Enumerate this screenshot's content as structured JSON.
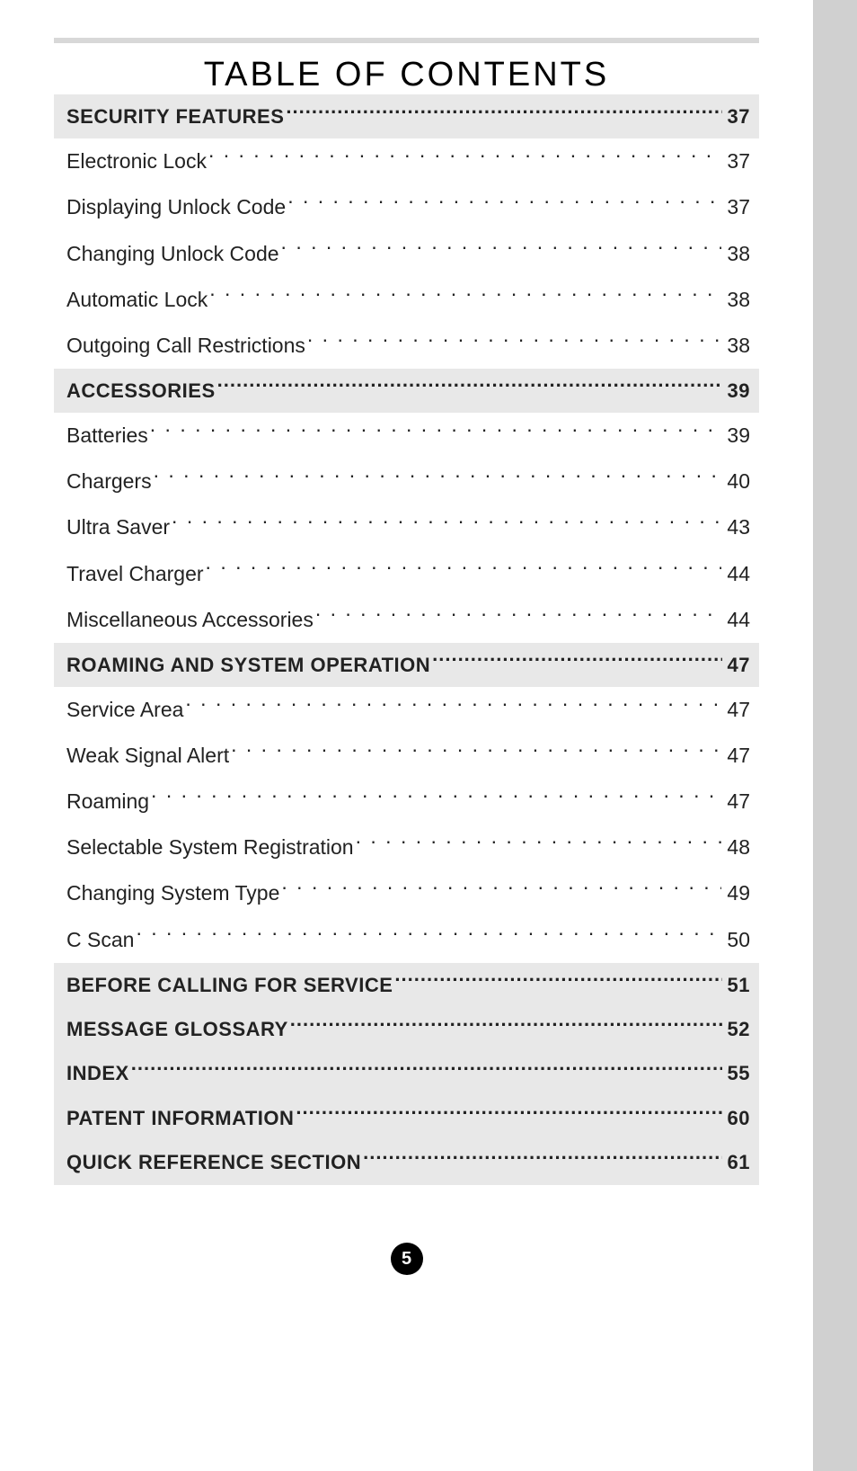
{
  "title": "Table of Contents",
  "page_number": "5",
  "colors": {
    "page_bg": "#ffffff",
    "outer_bg": "#d0d0d0",
    "section_bg": "#e8e8e8",
    "rule": "#d8d8d8",
    "text": "#222222",
    "badge_bg": "#000000",
    "badge_text": "#ffffff"
  },
  "typography": {
    "title_fontsize": 38,
    "row_fontsize": 23,
    "section_fontsize": 22,
    "title_letter_spacing": 3
  },
  "toc": [
    {
      "type": "section",
      "label": "SECURITY FEATURES",
      "page": "37"
    },
    {
      "type": "item",
      "label": "Electronic Lock",
      "page": "37"
    },
    {
      "type": "item",
      "label": "Displaying Unlock Code",
      "page": "37"
    },
    {
      "type": "item",
      "label": "Changing Unlock Code",
      "page": "38"
    },
    {
      "type": "item",
      "label": "Automatic Lock",
      "page": "38"
    },
    {
      "type": "item",
      "label": "Outgoing Call Restrictions",
      "page": "38"
    },
    {
      "type": "section",
      "label": "ACCESSORIES",
      "page": "39"
    },
    {
      "type": "item",
      "label": "Batteries",
      "page": "39"
    },
    {
      "type": "item",
      "label": "Chargers",
      "page": "40"
    },
    {
      "type": "item",
      "label": "Ultra Saver",
      "page": "43"
    },
    {
      "type": "item",
      "label": "Travel Charger",
      "page": "44"
    },
    {
      "type": "item",
      "label": "Miscellaneous Accessories",
      "page": "44"
    },
    {
      "type": "section",
      "label": "ROAMING AND SYSTEM OPERATION",
      "page": "47"
    },
    {
      "type": "item",
      "label": "Service Area",
      "page": "47"
    },
    {
      "type": "item",
      "label": "Weak Signal Alert",
      "page": "47"
    },
    {
      "type": "item",
      "label": "Roaming",
      "page": "47"
    },
    {
      "type": "item",
      "label": "Selectable System Registration",
      "page": "48"
    },
    {
      "type": "item",
      "label": "Changing System Type",
      "page": "49"
    },
    {
      "type": "item",
      "label": "C Scan",
      "page": "50"
    },
    {
      "type": "section",
      "label": "BEFORE CALLING FOR SERVICE",
      "page": "51"
    },
    {
      "type": "section",
      "label": "MESSAGE GLOSSARY",
      "page": "52"
    },
    {
      "type": "section",
      "label": "INDEX",
      "page": "55"
    },
    {
      "type": "section",
      "label": "PATENT INFORMATION",
      "page": "60"
    },
    {
      "type": "section",
      "label": "QUICK REFERENCE SECTION",
      "page": "61"
    }
  ]
}
